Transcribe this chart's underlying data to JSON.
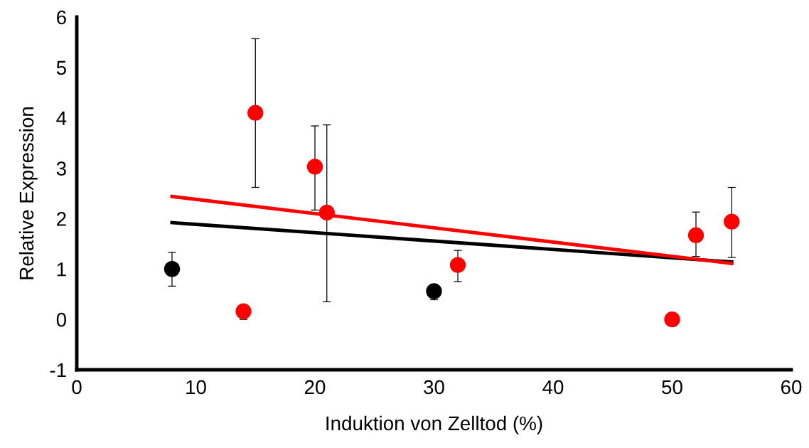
{
  "chart_data": {
    "type": "scatter",
    "xlabel": "Induktion von Zelltod (%)",
    "ylabel": "Relative Expression",
    "xlim": [
      0,
      60
    ],
    "xticks": [
      0,
      10,
      20,
      30,
      40,
      50,
      60
    ],
    "ylim": [
      -1,
      6
    ],
    "yticks": [
      -1,
      0,
      1,
      2,
      3,
      4,
      5,
      6
    ],
    "grid": false,
    "marker": "circle",
    "series": [
      {
        "color": "#000000",
        "x": [
          8,
          30
        ],
        "values": [
          1.0,
          0.56
        ],
        "errors": [
          [
            0.66,
            1.33
          ],
          [
            0.39,
            0.69
          ]
        ]
      },
      {
        "color": "#ff0000",
        "x": [
          14,
          15,
          20,
          21,
          32,
          50,
          52,
          55
        ],
        "values": [
          0.16,
          4.1,
          3.03,
          2.12,
          1.08,
          0.0,
          1.67,
          1.94
        ],
        "errors": [
          [
            0.0,
            0.28
          ],
          [
            2.62,
            5.57
          ],
          [
            2.17,
            3.84
          ],
          [
            0.35,
            3.86
          ],
          [
            0.75,
            1.37
          ],
          null,
          [
            1.25,
            2.13
          ],
          [
            1.23,
            2.62
          ]
        ]
      },
      {
        "type": "line",
        "marker": "none",
        "color": "#000000",
        "x": [
          8,
          55
        ],
        "values": [
          1.92,
          1.14
        ]
      },
      {
        "type": "line",
        "marker": "none",
        "color": "#ff0000",
        "x": [
          8,
          55
        ],
        "values": [
          2.44,
          1.11
        ]
      }
    ]
  }
}
